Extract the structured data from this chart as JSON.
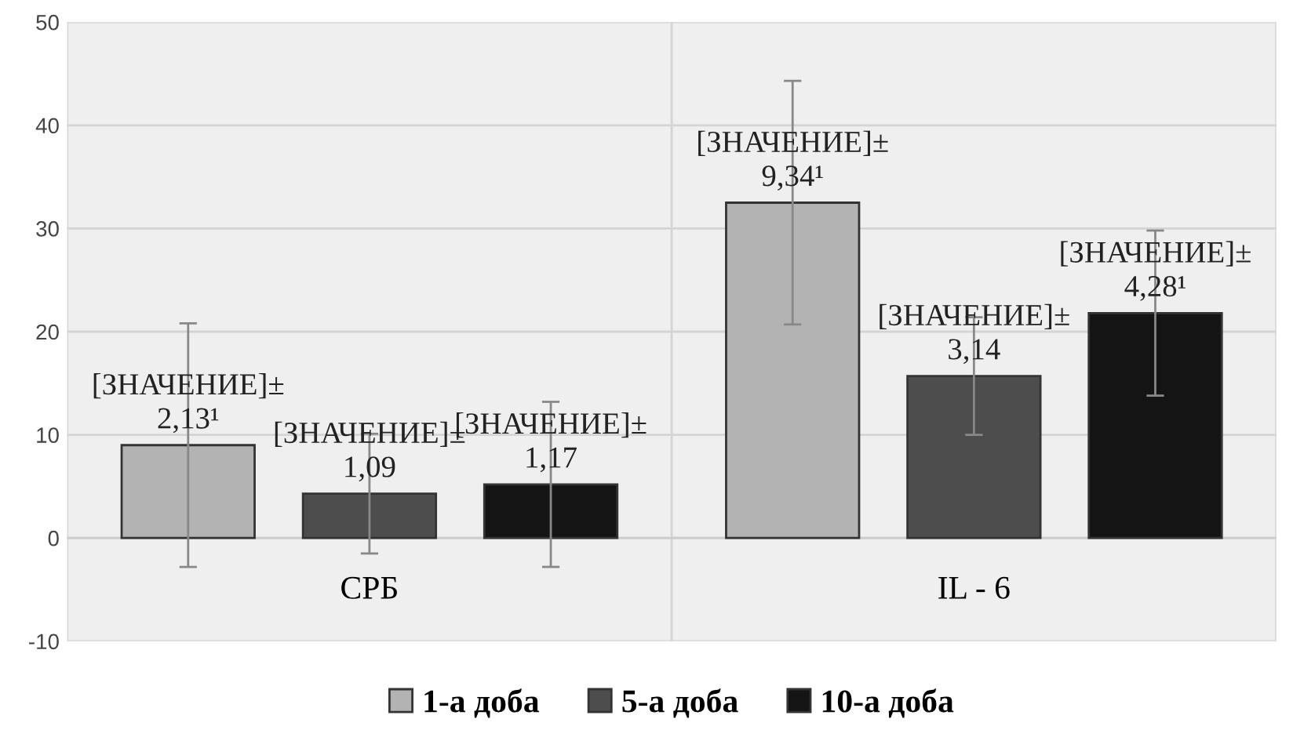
{
  "chart_data": {
    "type": "bar",
    "categories": [
      "СРБ",
      "IL - 6"
    ],
    "series": [
      {
        "name": "1-а доба",
        "color": "#b3b3b3",
        "values": [
          9.0,
          32.5
        ],
        "errors": [
          11.8,
          11.8
        ]
      },
      {
        "name": "5-а доба",
        "color": "#4d4d4d",
        "values": [
          4.3,
          15.7
        ],
        "errors": [
          5.8,
          5.7
        ]
      },
      {
        "name": "10-а доба",
        "color": "#141414",
        "values": [
          5.2,
          21.8
        ],
        "errors": [
          8,
          8
        ]
      }
    ],
    "annotations": [
      "[ЗНАЧЕНИЕ]±\n2,13¹",
      "[ЗНАЧЕНИЕ]±\n1,09",
      "[ЗНАЧЕНИЕ]±\n1,17",
      "[ЗНАЧЕНИЕ]±\n9,34¹",
      "[ЗНАЧЕНИЕ]±\n3,14",
      "[ЗНАЧЕНИЕ]±\n4,28¹"
    ],
    "ylim": [
      -10,
      50
    ],
    "yticks": [
      -10,
      0,
      10,
      20,
      30,
      40,
      50
    ],
    "grid": true,
    "legend": "bottom"
  }
}
